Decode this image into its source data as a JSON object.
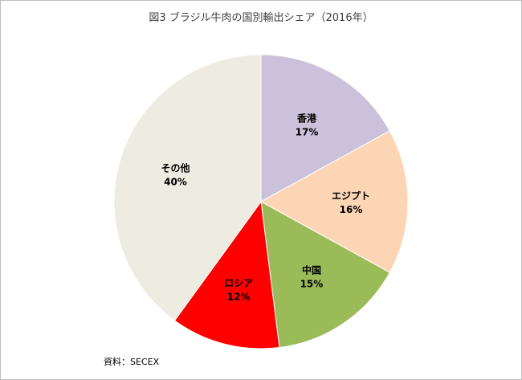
{
  "title": "図3  ブラジル牛肉の国別輸出シェア（2016年）",
  "source": "資料：SECEX",
  "chart_data": {
    "type": "pie",
    "title": "図3  ブラジル牛肉の国別輸出シェア（2016年）",
    "start": "12 o'clock, clockwise",
    "slices": [
      {
        "label": "香港",
        "value": 17,
        "value_label": "17%",
        "color": "#CCC1DA"
      },
      {
        "label": "エジプト",
        "value": 16,
        "value_label": "16%",
        "color": "#FCD5B5"
      },
      {
        "label": "中国",
        "value": 15,
        "value_label": "15%",
        "color": "#9BBB59"
      },
      {
        "label": "ロシア",
        "value": 12,
        "value_label": "12%",
        "color": "#FF0000"
      },
      {
        "label": "その他",
        "value": 40,
        "value_label": "40%",
        "color": "#EEECE1"
      }
    ]
  }
}
